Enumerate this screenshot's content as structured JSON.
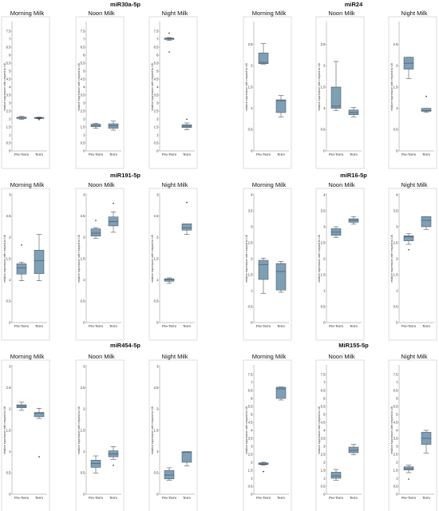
{
  "figure": {
    "y_axis_label": "relative expression with respect to U6",
    "group_labels": [
      "Pre-Term",
      "Term"
    ]
  },
  "colors": {
    "box_fill": "#7f9fb5",
    "box_stroke": "#3a4c5c",
    "whisker": "#333333",
    "panel_border": "#d0d0d0",
    "background": "#ffffff"
  },
  "chart_data": [
    {
      "type": "box",
      "gene": "miR30a-5p",
      "title": "Morning Milk",
      "ylabel": "relative expression with respect to U6",
      "ylim": [
        0,
        8
      ],
      "yticks": [
        0,
        0.5,
        1,
        1.5,
        2,
        2.5,
        3,
        3.5,
        4,
        4.5,
        5,
        5.5,
        6,
        6.5,
        7,
        7.5
      ],
      "categories": [
        "Pre-Term",
        "Term"
      ],
      "series": [
        {
          "min": 1.98,
          "q1": 2.03,
          "median": 2.06,
          "q3": 2.11,
          "max": 2.16,
          "outliers": []
        },
        {
          "min": 2.01,
          "q1": 2.04,
          "median": 2.06,
          "q3": 2.09,
          "max": 2.12,
          "outliers": [
            1.96
          ]
        }
      ]
    },
    {
      "type": "box",
      "gene": "miR30a-5p",
      "title": "Noon Milk",
      "ylabel": "relative expression with respect to U6",
      "ylim": [
        0,
        8
      ],
      "yticks": [
        0,
        0.5,
        1,
        1.5,
        2,
        2.5,
        3,
        3.5,
        4,
        4.5,
        5,
        5.5,
        6,
        6.5,
        7,
        7.5
      ],
      "categories": [
        "Pre-Term",
        "Term"
      ],
      "series": [
        {
          "min": 1.42,
          "q1": 1.52,
          "median": 1.6,
          "q3": 1.67,
          "max": 1.72,
          "outliers": []
        },
        {
          "min": 1.3,
          "q1": 1.42,
          "median": 1.58,
          "q3": 1.7,
          "max": 1.86,
          "outliers": []
        }
      ]
    },
    {
      "type": "box",
      "gene": "miR30a-5p",
      "title": "Night Milk",
      "ylabel": "relative expression with respect to U6",
      "ylim": [
        0,
        8
      ],
      "yticks": [
        0,
        0.5,
        1,
        1.5,
        2,
        2.5,
        3,
        3.5,
        4,
        4.5,
        5,
        5.5,
        6,
        6.5,
        7,
        7.5
      ],
      "categories": [
        "Pre-Term",
        "Term"
      ],
      "series": [
        {
          "min": 6.92,
          "q1": 6.98,
          "median": 7.02,
          "q3": 7.06,
          "max": 7.1,
          "outliers": [
            7.38,
            6.2
          ]
        },
        {
          "min": 1.32,
          "q1": 1.46,
          "median": 1.55,
          "q3": 1.64,
          "max": 1.75,
          "outliers": [
            1.98
          ]
        }
      ]
    },
    {
      "type": "box",
      "gene": "miR24",
      "title": "Morning Milk",
      "ylabel": "relative expression with respect to U6",
      "ylim": [
        0,
        3
      ],
      "yticks": [
        0,
        0.5,
        1,
        1.5,
        2,
        2.5
      ],
      "categories": [
        "Pre-Term",
        "Term"
      ],
      "series": [
        {
          "min": 2.04,
          "q1": 2.05,
          "median": 2.08,
          "q3": 2.3,
          "max": 2.52,
          "outliers": []
        },
        {
          "min": 0.8,
          "q1": 0.9,
          "median": 1.18,
          "q3": 1.2,
          "max": 1.3,
          "outliers": []
        }
      ]
    },
    {
      "type": "box",
      "gene": "miR24",
      "title": "Noon Milk",
      "ylabel": "relative expression with respect to U6",
      "ylim": [
        0,
        3
      ],
      "yticks": [
        0,
        0.5,
        1,
        1.5,
        2,
        2.5
      ],
      "categories": [
        "Pre-Term",
        "Term"
      ],
      "series": [
        {
          "min": 0.95,
          "q1": 1.0,
          "median": 1.05,
          "q3": 1.5,
          "max": 2.1,
          "outliers": []
        },
        {
          "min": 0.8,
          "q1": 0.85,
          "median": 0.9,
          "q3": 0.96,
          "max": 1.02,
          "outliers": []
        }
      ]
    },
    {
      "type": "box",
      "gene": "miR24",
      "title": "Night Milk",
      "ylabel": "relative expression with respect to U6",
      "ylim": [
        0,
        3
      ],
      "yticks": [
        0,
        0.5,
        1,
        1.5,
        2,
        2.5
      ],
      "categories": [
        "Pre-Term",
        "Term"
      ],
      "series": [
        {
          "min": 1.7,
          "q1": 1.92,
          "median": 2.06,
          "q3": 2.2,
          "max": 2.2,
          "outliers": []
        },
        {
          "min": 0.91,
          "q1": 0.93,
          "median": 0.95,
          "q3": 1.0,
          "max": 1.0,
          "outliers": [
            1.28
          ]
        }
      ]
    },
    {
      "type": "box",
      "gene": "miR191-5p",
      "title": "Morning Milk",
      "ylabel": "relative expression with respect to U6",
      "ylim": [
        0,
        3
      ],
      "yticks": [
        0,
        0.5,
        1,
        1.5,
        2,
        2.5,
        3
      ],
      "categories": [
        "Pre-Term",
        "Term"
      ],
      "series": [
        {
          "min": 0.98,
          "q1": 1.14,
          "median": 1.28,
          "q3": 1.38,
          "max": 1.42,
          "outliers": [
            1.82
          ]
        },
        {
          "min": 0.98,
          "q1": 1.15,
          "median": 1.45,
          "q3": 1.7,
          "max": 2.07,
          "outliers": []
        }
      ]
    },
    {
      "type": "box",
      "gene": "miR191-5p",
      "title": "Noon Milk",
      "ylabel": "relative expression with respect to U6",
      "ylim": [
        0,
        3
      ],
      "yticks": [
        0,
        0.5,
        1,
        1.5,
        2,
        2.5,
        3
      ],
      "categories": [
        "Pre-Term",
        "Term"
      ],
      "series": [
        {
          "min": 1.98,
          "q1": 2.03,
          "median": 2.1,
          "q3": 2.2,
          "max": 2.23,
          "outliers": [
            2.4
          ]
        },
        {
          "min": 2.12,
          "q1": 2.27,
          "median": 2.37,
          "q3": 2.48,
          "max": 2.6,
          "outliers": [
            2.8
          ]
        }
      ]
    },
    {
      "type": "box",
      "gene": "miR191-5p",
      "title": "Night Milk",
      "ylabel": "relative expression with respect to U6",
      "ylim": [
        0,
        3
      ],
      "yticks": [
        0,
        0.5,
        1,
        1.5,
        2,
        2.5,
        3
      ],
      "categories": [
        "Pre-Term",
        "Term"
      ],
      "series": [
        {
          "min": 0.92,
          "q1": 0.97,
          "median": 1.0,
          "q3": 1.03,
          "max": 1.05,
          "outliers": []
        },
        {
          "min": 2.07,
          "q1": 2.17,
          "median": 2.22,
          "q3": 2.32,
          "max": 2.32,
          "outliers": [
            2.82
          ]
        }
      ]
    },
    {
      "type": "box",
      "gene": "miR16-5p",
      "title": "Morning Milk",
      "ylabel": "relative expression with respect to U6",
      "ylim": [
        0,
        4
      ],
      "yticks": [
        0,
        0.5,
        1,
        1.5,
        2,
        2.5,
        3,
        3.5,
        4
      ],
      "categories": [
        "Pre-Term",
        "Term"
      ],
      "series": [
        {
          "min": 0.92,
          "q1": 1.35,
          "median": 1.82,
          "q3": 1.95,
          "max": 2.02,
          "outliers": []
        },
        {
          "min": 0.95,
          "q1": 1.02,
          "median": 1.6,
          "q3": 1.85,
          "max": 1.92,
          "outliers": []
        }
      ]
    },
    {
      "type": "box",
      "gene": "miR16-5p",
      "title": "Noon Milk",
      "ylabel": "relative expression with respect to U6",
      "ylim": [
        0,
        4
      ],
      "yticks": [
        0,
        0.5,
        1,
        1.5,
        2,
        2.5,
        3,
        3.5,
        4
      ],
      "categories": [
        "Pre-Term",
        "Term"
      ],
      "series": [
        {
          "min": 2.66,
          "q1": 2.73,
          "median": 2.83,
          "q3": 2.94,
          "max": 3.0,
          "outliers": []
        },
        {
          "min": 3.08,
          "q1": 3.14,
          "median": 3.2,
          "q3": 3.25,
          "max": 3.32,
          "outliers": []
        }
      ]
    },
    {
      "type": "box",
      "gene": "miR16-5p",
      "title": "Night Milk",
      "ylabel": "relative expression with respect to U6",
      "ylim": [
        0,
        4
      ],
      "yticks": [
        0,
        0.5,
        1,
        1.5,
        2,
        2.5,
        3,
        3.5,
        4
      ],
      "categories": [
        "Pre-Term",
        "Term"
      ],
      "series": [
        {
          "min": 2.45,
          "q1": 2.56,
          "median": 2.68,
          "q3": 2.72,
          "max": 2.78,
          "outliers": [
            2.28
          ]
        },
        {
          "min": 2.92,
          "q1": 3.0,
          "median": 3.2,
          "q3": 3.32,
          "max": 3.32,
          "outliers": []
        }
      ]
    },
    {
      "type": "box",
      "gene": "miR454-5p",
      "title": "Morning Milk",
      "ylabel": "relative expression with respect to U6",
      "ylim": [
        0,
        3
      ],
      "yticks": [
        0,
        0.5,
        1,
        1.5,
        2,
        2.5,
        3
      ],
      "categories": [
        "Pre-Term",
        "Term"
      ],
      "series": [
        {
          "min": 1.97,
          "q1": 2.03,
          "median": 2.07,
          "q3": 2.1,
          "max": 2.16,
          "outliers": []
        },
        {
          "min": 1.78,
          "q1": 1.82,
          "median": 1.9,
          "q3": 1.92,
          "max": 2.02,
          "outliers": [
            0.88
          ]
        }
      ]
    },
    {
      "type": "box",
      "gene": "miR454-5p",
      "title": "Noon Milk",
      "ylabel": "relative expression with respect to U6",
      "ylim": [
        0,
        3
      ],
      "yticks": [
        0,
        0.5,
        1,
        1.5,
        2,
        2.5,
        3
      ],
      "categories": [
        "Pre-Term",
        "Term"
      ],
      "series": [
        {
          "min": 0.5,
          "q1": 0.63,
          "median": 0.72,
          "q3": 0.8,
          "max": 0.9,
          "outliers": []
        },
        {
          "min": 0.82,
          "q1": 0.88,
          "median": 0.95,
          "q3": 1.02,
          "max": 1.12,
          "outliers": [
            0.68
          ]
        }
      ]
    },
    {
      "type": "box",
      "gene": "miR454-5p",
      "title": "Night Milk",
      "ylabel": "relative expression with respect to U6",
      "ylim": [
        0,
        3
      ],
      "yticks": [
        0,
        0.5,
        1,
        1.5,
        2,
        2.5,
        3
      ],
      "categories": [
        "Pre-Term",
        "Term"
      ],
      "series": [
        {
          "min": 0.33,
          "q1": 0.36,
          "median": 0.45,
          "q3": 0.56,
          "max": 0.62,
          "outliers": []
        },
        {
          "min": 0.67,
          "q1": 0.75,
          "median": 0.98,
          "q3": 1.0,
          "max": 1.0,
          "outliers": []
        }
      ]
    },
    {
      "type": "box",
      "gene": "MiR155-5p",
      "title": "Morning Milk",
      "ylabel": "relative expression with respect to U6",
      "ylim": [
        0,
        8
      ],
      "yticks": [
        0,
        0.5,
        1,
        1.5,
        2,
        2.5,
        3,
        3.5,
        4,
        4.5,
        5,
        5.5,
        6,
        6.5,
        7,
        7.5
      ],
      "categories": [
        "Pre-Term",
        "Term"
      ],
      "series": [
        {
          "min": 1.82,
          "q1": 1.86,
          "median": 1.9,
          "q3": 1.96,
          "max": 2.0,
          "outliers": [
            1.42
          ]
        },
        {
          "min": 5.9,
          "q1": 6.0,
          "median": 6.6,
          "q3": 6.7,
          "max": 6.72,
          "outliers": []
        }
      ]
    },
    {
      "type": "box",
      "gene": "MiR155-5p",
      "title": "Noon Milk",
      "ylabel": "relative expression with respect to U6",
      "ylim": [
        0,
        8
      ],
      "yticks": [
        0,
        0.5,
        1,
        1.5,
        2,
        2.5,
        3,
        3.5,
        4,
        4.5,
        5,
        5.5,
        6,
        6.5,
        7,
        7.5
      ],
      "categories": [
        "Pre-Term",
        "Term"
      ],
      "series": [
        {
          "min": 0.88,
          "q1": 1.0,
          "median": 1.15,
          "q3": 1.38,
          "max": 1.55,
          "outliers": []
        },
        {
          "min": 2.48,
          "q1": 2.6,
          "median": 2.75,
          "q3": 2.95,
          "max": 3.12,
          "outliers": []
        }
      ]
    },
    {
      "type": "box",
      "gene": "MiR155-5p",
      "title": "Night Milk",
      "ylabel": "relative expression with respect to U6",
      "ylim": [
        0,
        8
      ],
      "yticks": [
        0,
        0.5,
        1,
        1.5,
        2,
        2.5,
        3,
        3.5,
        4,
        4.5,
        5,
        5.5,
        6,
        6.5,
        7,
        7.5
      ],
      "categories": [
        "Pre-Term",
        "Term"
      ],
      "series": [
        {
          "min": 1.35,
          "q1": 1.52,
          "median": 1.6,
          "q3": 1.72,
          "max": 1.82,
          "outliers": [
            0.95
          ]
        },
        {
          "min": 2.58,
          "q1": 3.12,
          "median": 3.5,
          "q3": 3.88,
          "max": 4.0,
          "outliers": []
        }
      ]
    }
  ]
}
